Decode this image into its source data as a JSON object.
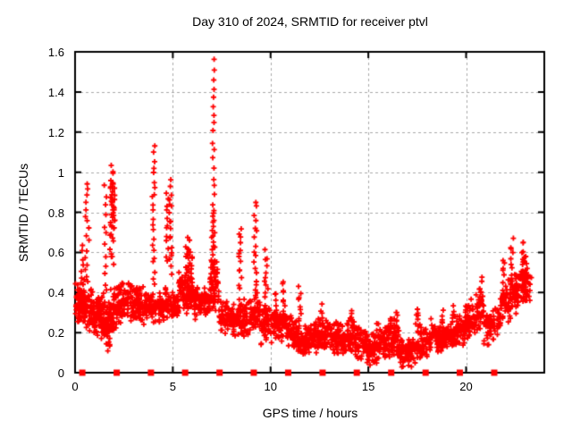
{
  "chart": {
    "accent_color": "#ff0000",
    "background_color": "#ffffff"
  },
  "chart_data": {
    "type": "scatter",
    "title": "Day 310 of 2024, SRMTID for receiver ptvl",
    "xlabel": "GPS time / hours",
    "ylabel": "SRMTID / TECUs",
    "xlim": [
      0,
      24
    ],
    "ylim": [
      0,
      1.6
    ],
    "xticks": [
      0,
      5,
      10,
      15,
      20
    ],
    "xtick_labels": [
      "0",
      "5",
      "10",
      "15",
      "20"
    ],
    "yticks": [
      0,
      0.2,
      0.4,
      0.6,
      0.8,
      1.0,
      1.2,
      1.4,
      1.6
    ],
    "ytick_labels": [
      "0",
      "0.2",
      "0.4",
      "0.6",
      "0.8",
      "1",
      "1.2",
      "1.4",
      "1.6"
    ],
    "grid": true,
    "grid_color": "#a8a8a8",
    "grid_dash": [
      3,
      3
    ],
    "axis_color": "#000000",
    "legend": "none",
    "seed": 20241105,
    "series": [
      {
        "name": "srmtid-points",
        "marker": "plus",
        "color": "#ff0000",
        "comment_bands": "dense scatter envelope segments: [x0,x1,ylow0,yhigh0,ylow1,yhigh1,count]",
        "bands": [
          [
            0.02,
            0.35,
            0.22,
            0.45,
            0.25,
            0.47,
            60
          ],
          [
            0.35,
            0.95,
            0.22,
            0.48,
            0.18,
            0.42,
            80
          ],
          [
            0.95,
            1.25,
            0.12,
            0.38,
            0.18,
            0.42,
            45
          ],
          [
            1.25,
            1.55,
            0.18,
            0.45,
            0.1,
            0.4,
            45
          ],
          [
            1.55,
            1.8,
            0.03,
            0.35,
            0.1,
            0.4,
            45
          ],
          [
            1.8,
            2.2,
            0.12,
            0.45,
            0.2,
            0.45,
            55
          ],
          [
            2.2,
            2.7,
            0.2,
            0.48,
            0.25,
            0.48,
            60
          ],
          [
            2.7,
            3.3,
            0.22,
            0.5,
            0.25,
            0.45,
            70
          ],
          [
            3.3,
            3.95,
            0.22,
            0.45,
            0.25,
            0.42,
            70
          ],
          [
            3.95,
            4.55,
            0.22,
            0.42,
            0.25,
            0.4,
            60
          ],
          [
            4.55,
            5.3,
            0.25,
            0.45,
            0.26,
            0.4,
            70
          ],
          [
            5.3,
            6.1,
            0.28,
            0.52,
            0.3,
            0.48,
            85
          ],
          [
            6.1,
            6.9,
            0.25,
            0.45,
            0.28,
            0.42,
            75
          ],
          [
            6.9,
            7.35,
            0.28,
            0.6,
            0.28,
            0.55,
            55
          ],
          [
            7.35,
            8.3,
            0.17,
            0.38,
            0.18,
            0.35,
            85
          ],
          [
            8.3,
            9.0,
            0.17,
            0.38,
            0.18,
            0.4,
            70
          ],
          [
            9.0,
            9.5,
            0.18,
            0.42,
            0.18,
            0.4,
            50
          ],
          [
            9.5,
            10.1,
            0.12,
            0.38,
            0.14,
            0.35,
            60
          ],
          [
            10.1,
            10.9,
            0.15,
            0.35,
            0.15,
            0.32,
            75
          ],
          [
            10.9,
            11.4,
            0.12,
            0.3,
            0.1,
            0.27,
            55
          ],
          [
            11.4,
            12.2,
            0.07,
            0.25,
            0.08,
            0.24,
            80
          ],
          [
            12.2,
            13.0,
            0.09,
            0.28,
            0.1,
            0.28,
            85
          ],
          [
            13.0,
            14.0,
            0.08,
            0.29,
            0.07,
            0.26,
            95
          ],
          [
            14.0,
            14.55,
            0.08,
            0.3,
            0.05,
            0.25,
            55
          ],
          [
            14.55,
            15.35,
            0.03,
            0.25,
            0.03,
            0.2,
            80
          ],
          [
            15.35,
            16.05,
            0.04,
            0.26,
            0.06,
            0.28,
            70
          ],
          [
            16.05,
            16.6,
            0.07,
            0.3,
            0.05,
            0.25,
            60
          ],
          [
            16.6,
            17.45,
            0.02,
            0.2,
            0.03,
            0.18,
            85
          ],
          [
            17.45,
            18.2,
            0.04,
            0.25,
            0.08,
            0.24,
            75
          ],
          [
            18.2,
            19.05,
            0.09,
            0.3,
            0.1,
            0.26,
            80
          ],
          [
            19.05,
            19.95,
            0.1,
            0.28,
            0.12,
            0.3,
            80
          ],
          [
            19.95,
            20.9,
            0.14,
            0.36,
            0.18,
            0.44,
            85
          ],
          [
            20.9,
            21.75,
            0.12,
            0.35,
            0.15,
            0.35,
            70
          ],
          [
            21.75,
            22.6,
            0.22,
            0.48,
            0.28,
            0.55,
            80
          ],
          [
            22.6,
            23.35,
            0.3,
            0.54,
            0.36,
            0.56,
            65
          ]
        ],
        "comment_columns": "vertical spike columns: [x,xjitter,ylow,yhigh,count]",
        "columns": [
          [
            0.38,
            0.06,
            0.4,
            0.63,
            8
          ],
          [
            0.62,
            0.1,
            0.45,
            0.95,
            16
          ],
          [
            1.55,
            0.06,
            0.4,
            0.93,
            12
          ],
          [
            1.88,
            0.1,
            0.55,
            1.02,
            26
          ],
          [
            1.97,
            0.07,
            0.72,
            0.95,
            18
          ],
          [
            4.02,
            0.07,
            0.45,
            1.12,
            22
          ],
          [
            4.72,
            0.06,
            0.55,
            0.9,
            12
          ],
          [
            4.88,
            0.07,
            0.5,
            0.95,
            18
          ],
          [
            5.75,
            0.12,
            0.42,
            0.66,
            20
          ],
          [
            5.92,
            0.08,
            0.4,
            0.6,
            12
          ],
          [
            7.08,
            0.06,
            0.8,
            1.55,
            18
          ],
          [
            7.05,
            0.1,
            0.45,
            0.8,
            22
          ],
          [
            8.45,
            0.07,
            0.42,
            0.72,
            13
          ],
          [
            9.22,
            0.08,
            0.4,
            0.85,
            16
          ],
          [
            9.78,
            0.09,
            0.25,
            0.6,
            16
          ],
          [
            10.25,
            0.07,
            0.25,
            0.4,
            8
          ],
          [
            10.68,
            0.08,
            0.25,
            0.46,
            10
          ],
          [
            11.5,
            0.07,
            0.25,
            0.42,
            9
          ],
          [
            12.62,
            0.06,
            0.22,
            0.33,
            7
          ],
          [
            14.18,
            0.06,
            0.2,
            0.32,
            7
          ],
          [
            16.45,
            0.08,
            0.2,
            0.31,
            8
          ],
          [
            17.5,
            0.08,
            0.22,
            0.31,
            8
          ],
          [
            18.8,
            0.05,
            0.2,
            0.31,
            6
          ],
          [
            19.35,
            0.05,
            0.2,
            0.33,
            6
          ],
          [
            20.0,
            0.07,
            0.22,
            0.34,
            8
          ],
          [
            20.75,
            0.08,
            0.28,
            0.47,
            10
          ],
          [
            21.95,
            0.08,
            0.35,
            0.56,
            11
          ],
          [
            22.35,
            0.07,
            0.42,
            0.66,
            11
          ],
          [
            22.9,
            0.08,
            0.45,
            0.66,
            10
          ],
          [
            23.05,
            0.09,
            0.38,
            0.58,
            13
          ]
        ],
        "peak_value": 1.55,
        "peak_time": 7.1
      },
      {
        "name": "baseline-squares",
        "marker": "square",
        "color": "#ff0000",
        "y": 0,
        "x": [
          0.37,
          2.13,
          3.88,
          5.63,
          7.39,
          9.14,
          10.9,
          12.66,
          14.41,
          16.17,
          17.93,
          19.68,
          21.44
        ]
      }
    ]
  }
}
